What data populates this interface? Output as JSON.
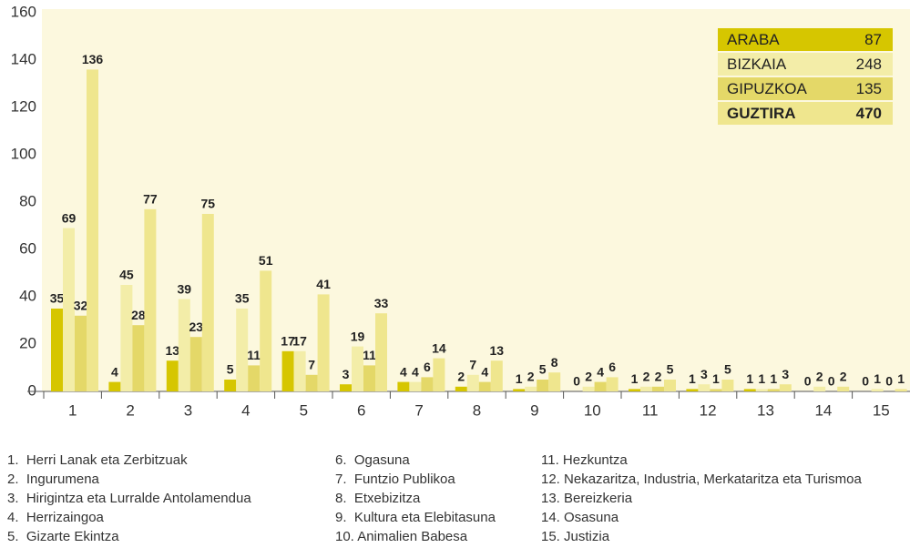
{
  "chart_data": {
    "type": "bar",
    "categories": [
      "1",
      "2",
      "3",
      "4",
      "5",
      "6",
      "7",
      "8",
      "9",
      "10",
      "11",
      "12",
      "13",
      "14",
      "15"
    ],
    "series": [
      {
        "name": "ARABA",
        "color": "#d6c600",
        "values": [
          35,
          4,
          13,
          5,
          17,
          3,
          4,
          2,
          1,
          0,
          1,
          1,
          1,
          0,
          0
        ]
      },
      {
        "name": "BIZKAIA",
        "color": "#f3eda8",
        "values": [
          69,
          45,
          39,
          35,
          17,
          19,
          4,
          7,
          2,
          2,
          2,
          3,
          1,
          2,
          1
        ]
      },
      {
        "name": "GIPUZKOA",
        "color": "#e4d868",
        "values": [
          32,
          28,
          23,
          11,
          7,
          11,
          6,
          4,
          5,
          4,
          2,
          1,
          1,
          0,
          0
        ]
      },
      {
        "name": "GUZTIRA",
        "color": "#efe68e",
        "values": [
          136,
          77,
          75,
          51,
          41,
          33,
          14,
          13,
          8,
          6,
          5,
          5,
          3,
          2,
          1
        ]
      }
    ],
    "legend_values": [
      87,
      248,
      135,
      470
    ],
    "ylim": [
      0,
      160
    ],
    "yticks": [
      0,
      20,
      40,
      60,
      80,
      100,
      120,
      140,
      160
    ],
    "grid": false,
    "notes": [
      "1.  Herri Lanak eta Zerbitzuak",
      "2.  Ingurumena",
      "3.  Hirigintza eta Lurralde Antolamendua",
      "4.  Herrizaingoa",
      "5.  Gizarte Ekintza",
      "6.  Ogasuna",
      "7.  Funtzio Publikoa",
      "8.  Etxebizitza",
      "9.  Kultura eta Elebitasuna",
      "10. Animalien Babesa",
      "11. Hezkuntza",
      "12. Nekazaritza, Industria, Merkataritza eta Turismoa",
      "13. Bereizkeria",
      "14. Osasuna",
      "15. Justizia"
    ]
  }
}
